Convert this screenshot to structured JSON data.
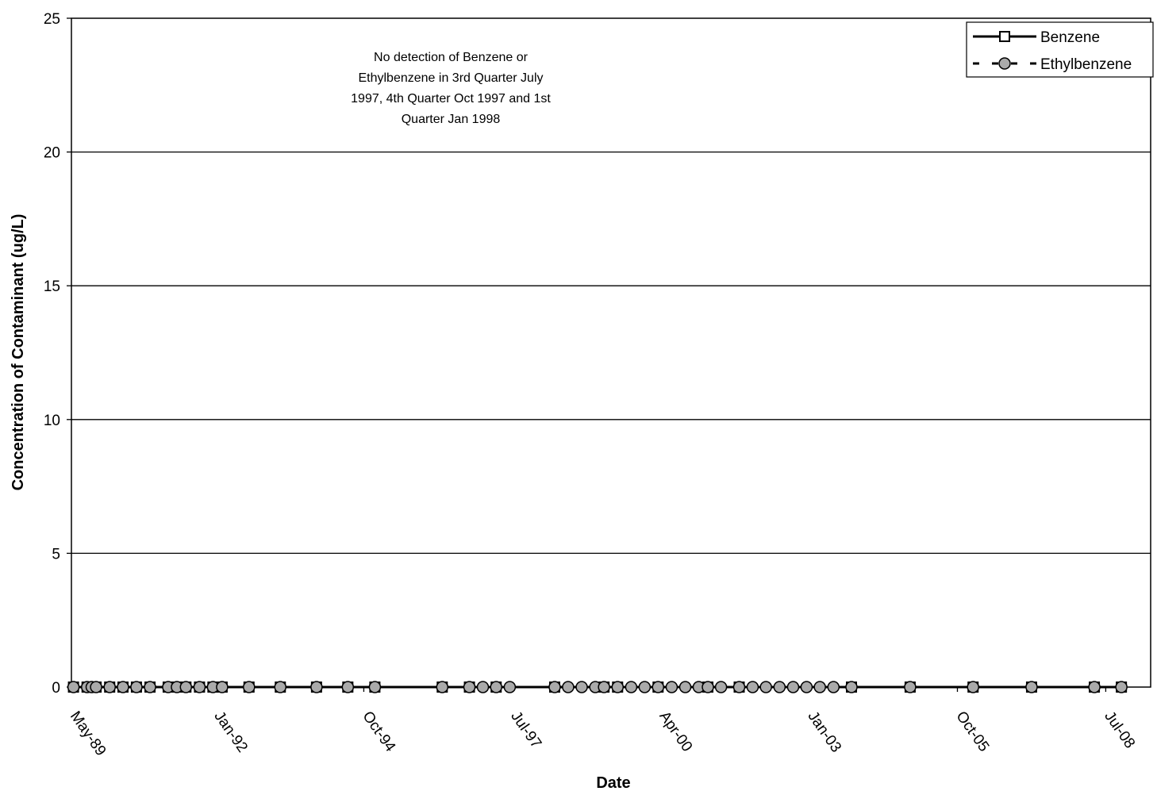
{
  "chart_data": {
    "type": "line",
    "title": "",
    "xlabel": "Date",
    "ylabel": "Concentration of Contaminant (ug/L)",
    "ylim": [
      0,
      25
    ],
    "yticks": [
      0,
      5,
      10,
      15,
      20,
      25
    ],
    "xlim": [
      "1989-05-01",
      "2009-05-01"
    ],
    "xticks": [
      "May-89",
      "Jan-92",
      "Oct-94",
      "Jul-97",
      "Apr-00",
      "Jan-03",
      "Oct-05",
      "Jul-08"
    ],
    "xtick_dates": [
      "1989-05-01",
      "1992-01-01",
      "1994-10-01",
      "1997-07-01",
      "2000-04-01",
      "2003-01-01",
      "2005-10-01",
      "2008-07-01"
    ],
    "grid": "horizontal",
    "legend_position": "top-right",
    "annotation": [
      "No detection of Benzene or",
      "Ethylbenzene in 3rd Quarter July",
      "1997, 4th Quarter Oct 1997 and 1st",
      "Quarter Jan 1998"
    ],
    "series": [
      {
        "name": "Benzene",
        "line": "solid",
        "marker": "square",
        "color": "#000000",
        "points": [
          [
            "1989-05-15",
            0
          ],
          [
            "1989-08-15",
            0
          ],
          [
            "1989-09-15",
            0
          ],
          [
            "1989-10-15",
            0
          ],
          [
            "1990-01-15",
            0
          ],
          [
            "1990-04-15",
            0
          ],
          [
            "1990-07-15",
            0
          ],
          [
            "1990-10-15",
            0
          ],
          [
            "1991-02-15",
            0
          ],
          [
            "1991-04-15",
            0
          ],
          [
            "1991-06-15",
            0
          ],
          [
            "1991-09-15",
            0
          ],
          [
            "1991-12-15",
            0
          ],
          [
            "1992-02-15",
            0
          ],
          [
            "1992-08-15",
            0
          ],
          [
            "1993-03-15",
            0
          ],
          [
            "1993-11-15",
            0
          ],
          [
            "1994-06-15",
            0
          ],
          [
            "1994-12-15",
            0
          ],
          [
            "1996-03-15",
            0
          ],
          [
            "1996-09-15",
            0
          ],
          [
            "1997-03-15",
            0
          ],
          [
            "1998-04-15",
            0
          ],
          [
            "1999-03-15",
            0
          ],
          [
            "1999-06-15",
            0
          ],
          [
            "2000-03-15",
            0
          ],
          [
            "2001-02-15",
            0
          ],
          [
            "2001-09-15",
            0
          ],
          [
            "2003-10-15",
            0
          ],
          [
            "2004-11-15",
            0
          ],
          [
            "2006-01-15",
            0
          ],
          [
            "2007-02-15",
            0
          ],
          [
            "2008-04-15",
            0
          ],
          [
            "2008-10-15",
            0
          ]
        ]
      },
      {
        "name": "Ethylbenzene",
        "line": "dashed",
        "marker": "circle",
        "color": "#000000",
        "points": [
          [
            "1989-05-15",
            0
          ],
          [
            "1989-08-15",
            0
          ],
          [
            "1989-09-15",
            0
          ],
          [
            "1989-10-15",
            0
          ],
          [
            "1990-01-15",
            0
          ],
          [
            "1990-04-15",
            0
          ],
          [
            "1990-07-15",
            0
          ],
          [
            "1990-10-15",
            0
          ],
          [
            "1991-02-15",
            0
          ],
          [
            "1991-04-15",
            0
          ],
          [
            "1991-06-15",
            0
          ],
          [
            "1991-09-15",
            0
          ],
          [
            "1991-12-15",
            0
          ],
          [
            "1992-02-15",
            0
          ],
          [
            "1992-08-15",
            0
          ],
          [
            "1993-03-15",
            0
          ],
          [
            "1993-11-15",
            0
          ],
          [
            "1994-06-15",
            0
          ],
          [
            "1994-12-15",
            0
          ],
          [
            "1996-03-15",
            0
          ],
          [
            "1996-09-15",
            0
          ],
          [
            "1996-12-15",
            0
          ],
          [
            "1997-03-15",
            0
          ],
          [
            "1997-06-15",
            0
          ],
          [
            "1998-04-15",
            0
          ],
          [
            "1998-07-15",
            0
          ],
          [
            "1998-10-15",
            0
          ],
          [
            "1999-01-15",
            0
          ],
          [
            "1999-03-15",
            0
          ],
          [
            "1999-06-15",
            0
          ],
          [
            "1999-09-15",
            0
          ],
          [
            "1999-12-15",
            0
          ],
          [
            "2000-03-15",
            0
          ],
          [
            "2000-06-15",
            0
          ],
          [
            "2000-09-15",
            0
          ],
          [
            "2000-12-15",
            0
          ],
          [
            "2001-02-15",
            0
          ],
          [
            "2001-05-15",
            0
          ],
          [
            "2001-09-15",
            0
          ],
          [
            "2001-12-15",
            0
          ],
          [
            "2002-03-15",
            0
          ],
          [
            "2002-06-15",
            0
          ],
          [
            "2002-09-15",
            0
          ],
          [
            "2002-12-15",
            0
          ],
          [
            "2003-03-15",
            0
          ],
          [
            "2003-06-15",
            0
          ],
          [
            "2003-10-15",
            0
          ],
          [
            "2004-11-15",
            0
          ],
          [
            "2006-01-15",
            0
          ],
          [
            "2007-02-15",
            0
          ],
          [
            "2008-04-15",
            0
          ],
          [
            "2008-10-15",
            0
          ]
        ]
      }
    ]
  }
}
